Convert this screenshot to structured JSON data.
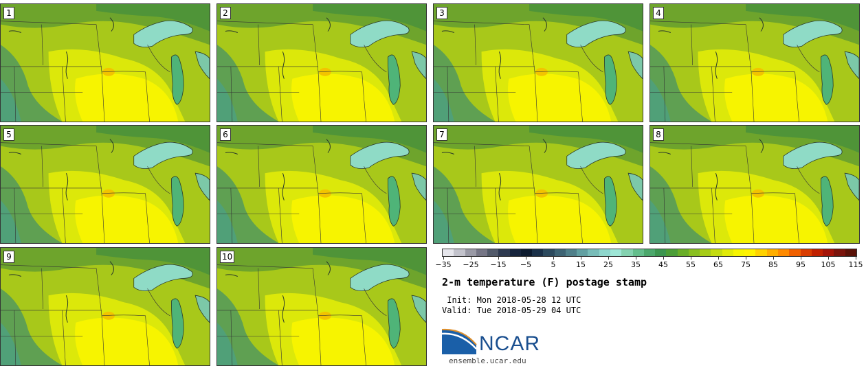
{
  "panels": [
    "1",
    "2",
    "3",
    "4",
    "5",
    "6",
    "7",
    "8",
    "9",
    "10"
  ],
  "colorbar": {
    "colors": [
      "#e6e6ec",
      "#c3c3cc",
      "#9a9aa6",
      "#767686",
      "#525a6a",
      "#2e3a50",
      "#16243c",
      "#0c1a2e",
      "#1a3048",
      "#2c4a5e",
      "#3e6474",
      "#50808a",
      "#62a0a2",
      "#78bcb8",
      "#8ed6cc",
      "#9ee6d6",
      "#84d2b0",
      "#64be8c",
      "#4ca86c",
      "#3c9650",
      "#4c9e38",
      "#6aae28",
      "#88be20",
      "#a6cc18",
      "#c4dc10",
      "#e0ea08",
      "#f6f400",
      "#fff200",
      "#ffd200",
      "#ffae00",
      "#ff8a00",
      "#f06000",
      "#d83c00",
      "#c02000",
      "#a41408",
      "#7a140c",
      "#5a1208"
    ],
    "ticks": [
      "−35",
      "−25",
      "−15",
      "−5",
      "5",
      "15",
      "25",
      "35",
      "45",
      "55",
      "65",
      "75",
      "85",
      "95",
      "105",
      "115"
    ]
  },
  "info": {
    "title": "2-m temperature (F) postage stamp",
    "init": " Init: Mon 2018-05-28 12 UTC",
    "valid": "Valid: Tue 2018-05-29 04 UTC",
    "logo_text": "NCAR",
    "site": "ensemble.ucar.edu"
  }
}
